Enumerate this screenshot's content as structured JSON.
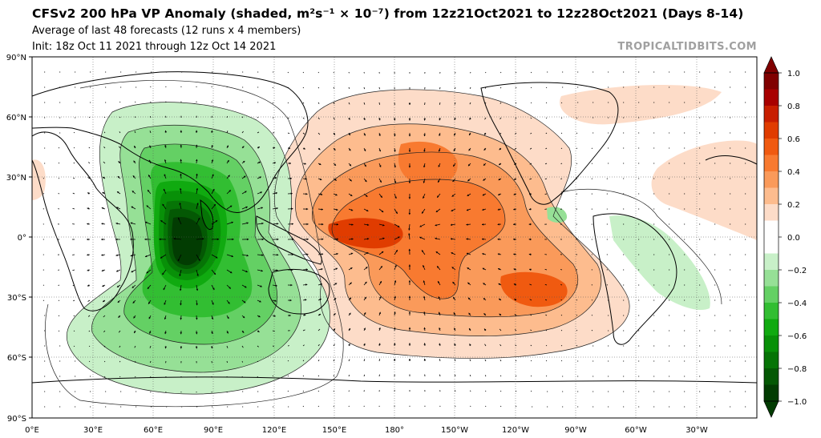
{
  "header": {
    "title": "CFSv2 200 hPa VP Anomaly (shaded, m²s⁻¹ × 10⁻⁷) from 12z21Oct2021 to 12z28Oct2021 (Days 8-14)",
    "subtitle": "Average of last 48 forecasts (12 runs x 4 members)",
    "init": "Init: 18z Oct 11 2021 through 12z Oct 14 2021",
    "brand": "TROPICALTIDBITS.COM"
  },
  "axes": {
    "lat_labels": [
      "90°N",
      "60°N",
      "30°N",
      "0°",
      "30°S",
      "60°S",
      "90°S"
    ],
    "lon_labels": [
      "0°E",
      "30°E",
      "60°E",
      "90°E",
      "120°E",
      "150°E",
      "180°",
      "150°W",
      "120°W",
      "90°W",
      "60°W",
      "30°W"
    ]
  },
  "colorbar": {
    "labels": [
      "1.0",
      "0.8",
      "0.6",
      "0.4",
      "0.2",
      "0.0",
      "−0.2",
      "−0.4",
      "−0.6",
      "−0.8",
      "−1.0"
    ],
    "colors": [
      "#800000",
      "#a80000",
      "#c81e00",
      "#e03c00",
      "#f05a10",
      "#f87a30",
      "#fa9a5a",
      "#fdbc8e",
      "#fddcc8",
      "#ffffff",
      "#ffffff",
      "#c8f0c8",
      "#96e096",
      "#64d064",
      "#32be32",
      "#10aa10",
      "#089008",
      "#067406",
      "#045804",
      "#023c02"
    ]
  },
  "field": {
    "negative_center": "Indian Ocean / Maritime Continent (approx. 85°E, 0°)",
    "positive_center": "Central Pacific (approx. 170°E–150°W, 0°–15°S)"
  }
}
